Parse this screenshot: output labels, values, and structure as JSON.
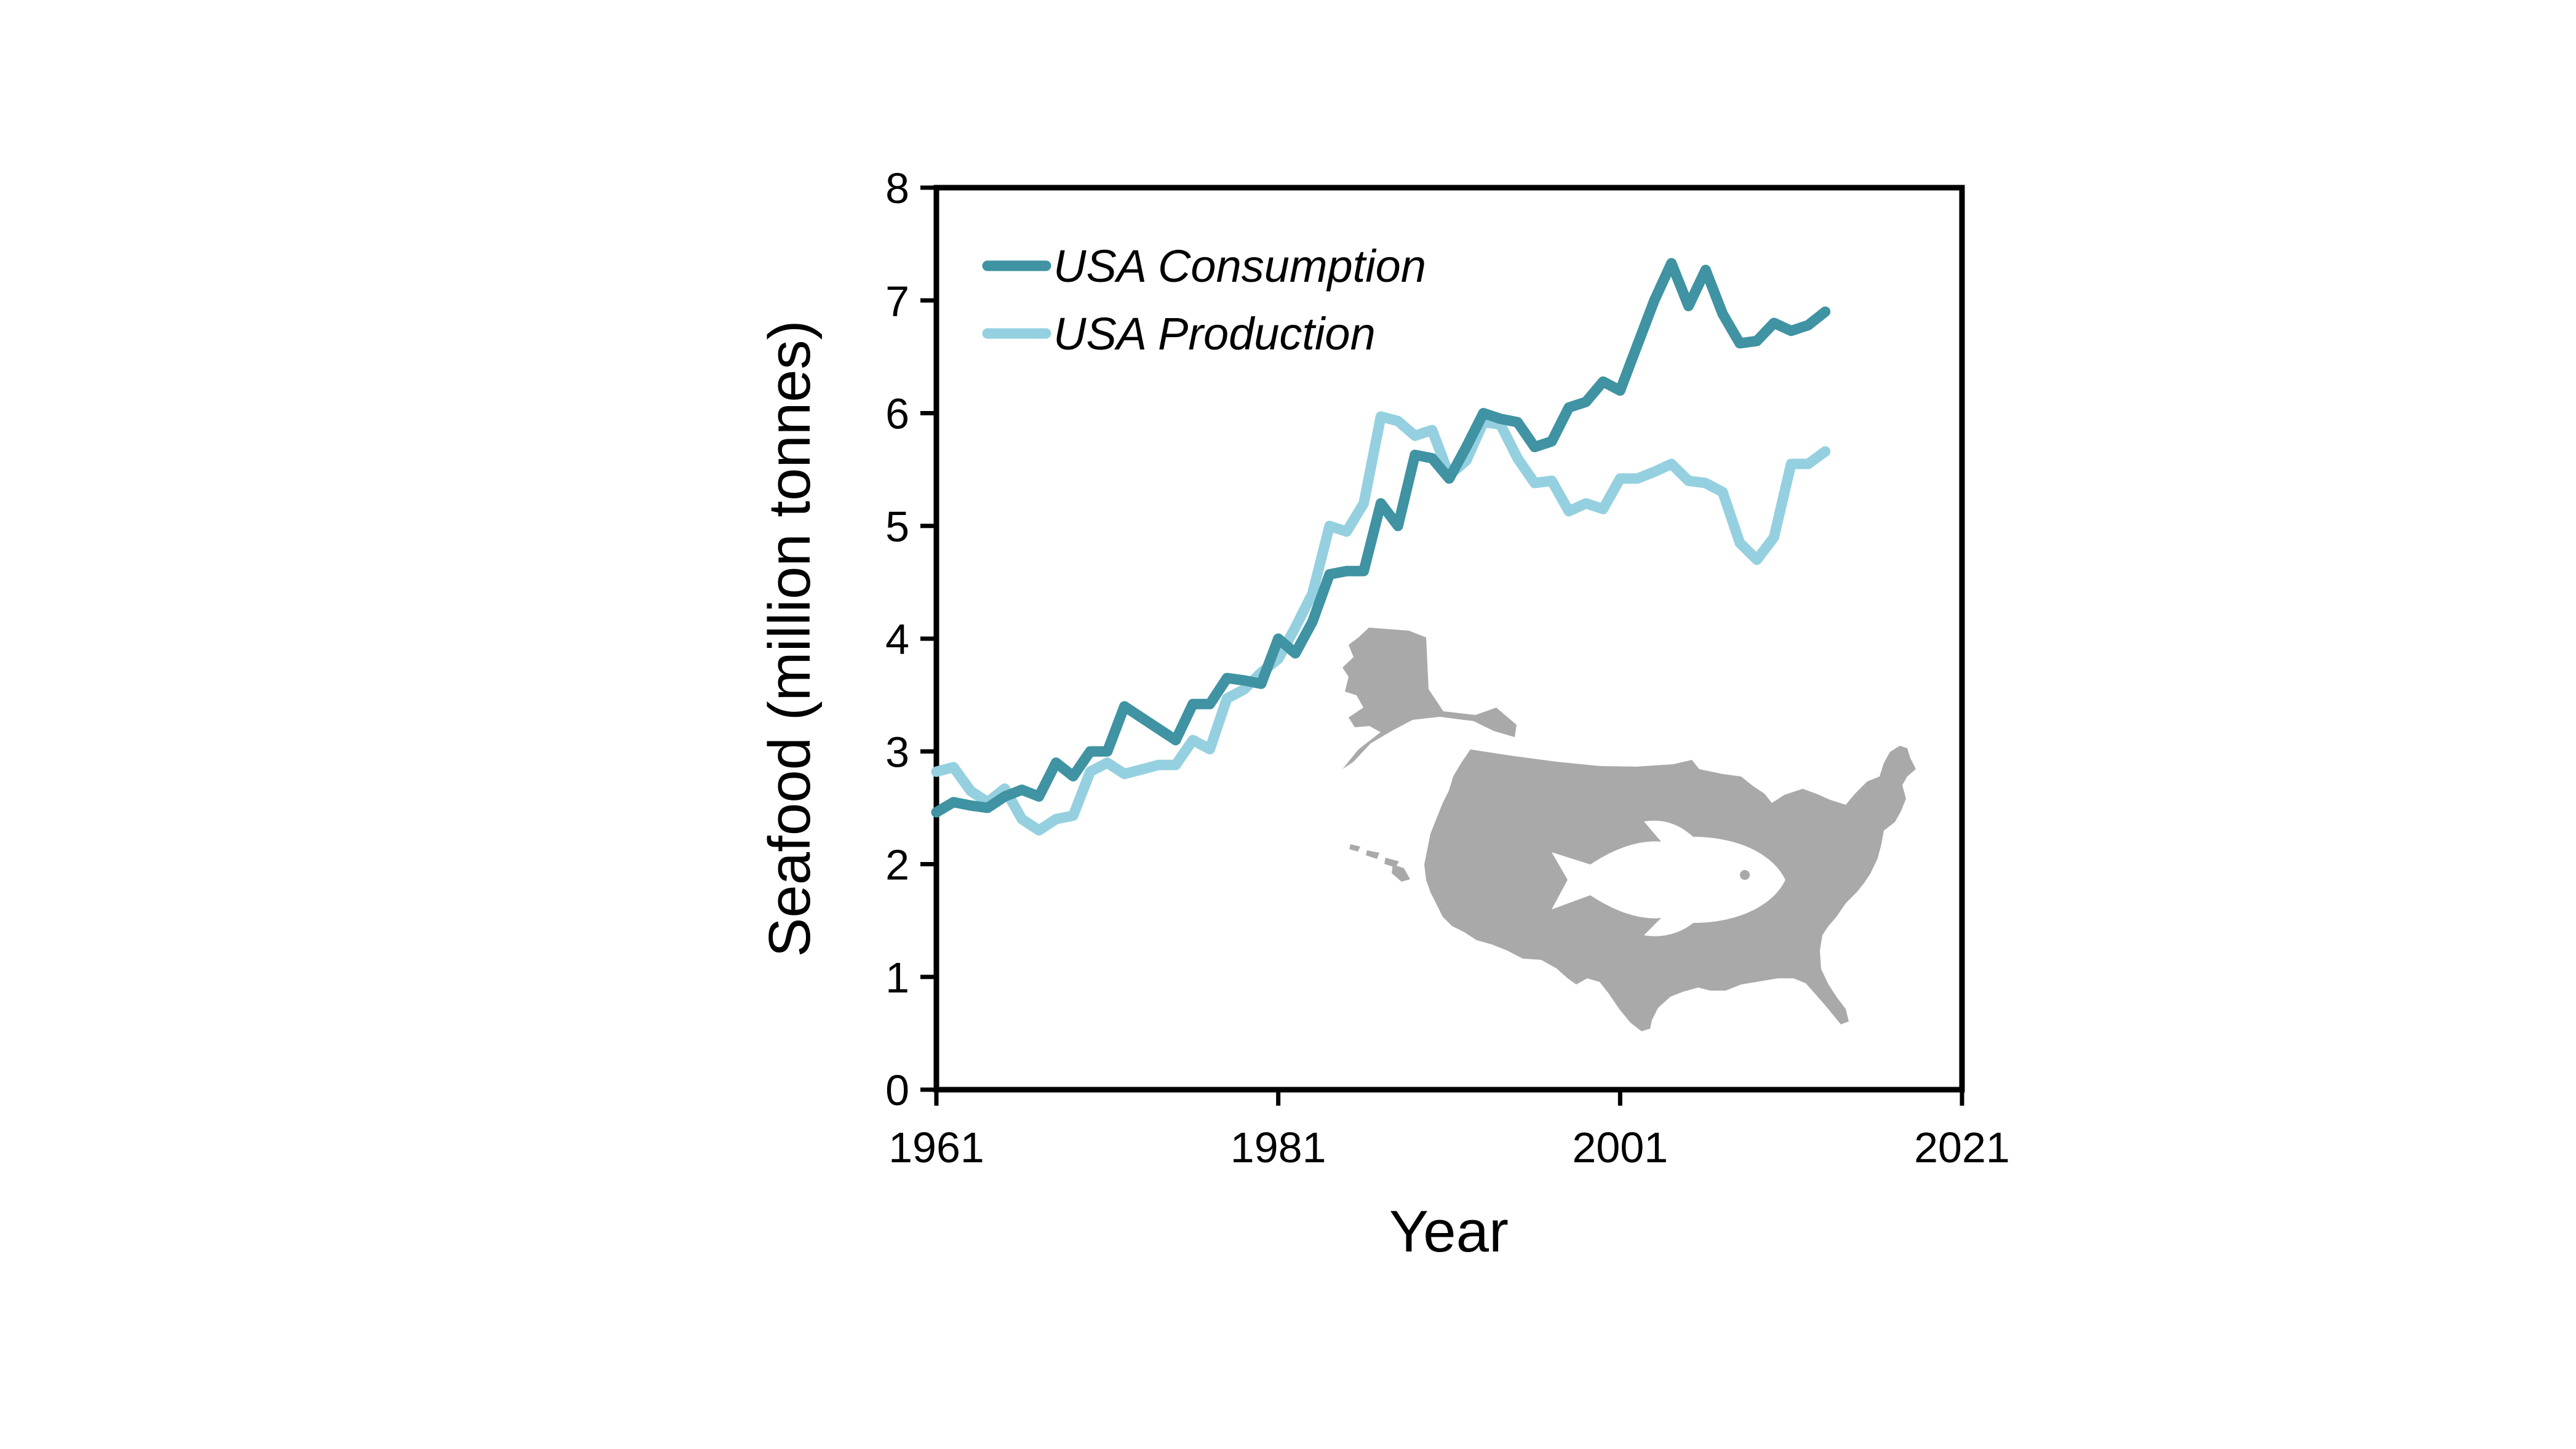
{
  "chart_data": {
    "type": "line",
    "xlabel": "Year",
    "ylabel": "Seafood (million tonnes)",
    "xlim": [
      1961,
      2021
    ],
    "ylim": [
      0,
      8
    ],
    "x_ticks": [
      1961,
      1981,
      2001,
      2021
    ],
    "y_ticks": [
      0,
      1,
      2,
      3,
      4,
      5,
      6,
      7,
      8
    ],
    "legend_position": "top-left",
    "grid": false,
    "inset_icon": "usa-map-with-fish-icon",
    "series": [
      {
        "name": "USA Consumption",
        "color": "#3f93a2",
        "x": [
          1961,
          1962,
          1963,
          1964,
          1965,
          1966,
          1967,
          1968,
          1969,
          1970,
          1971,
          1972,
          1973,
          1974,
          1975,
          1976,
          1977,
          1978,
          1979,
          1980,
          1981,
          1982,
          1983,
          1984,
          1985,
          1986,
          1987,
          1988,
          1989,
          1990,
          1991,
          1992,
          1993,
          1994,
          1995,
          1996,
          1997,
          1998,
          1999,
          2000,
          2001,
          2002,
          2003,
          2004,
          2005,
          2006,
          2007,
          2008,
          2009,
          2010,
          2011,
          2012,
          2013
        ],
        "y": [
          2.46,
          2.55,
          2.52,
          2.5,
          2.6,
          2.66,
          2.6,
          2.9,
          2.78,
          3.0,
          3.0,
          3.4,
          3.3,
          3.2,
          3.1,
          3.42,
          3.42,
          3.65,
          3.63,
          3.6,
          4.0,
          3.87,
          4.15,
          4.57,
          4.6,
          4.6,
          5.2,
          5.0,
          5.63,
          5.6,
          5.42,
          5.7,
          6.0,
          5.95,
          5.92,
          5.7,
          5.75,
          6.05,
          6.1,
          6.28,
          6.2,
          6.6,
          7.0,
          7.33,
          6.95,
          7.27,
          6.88,
          6.62,
          6.64,
          6.8,
          6.73,
          6.78,
          6.9
        ]
      },
      {
        "name": "USA Production",
        "color": "#95d0e0",
        "x": [
          1961,
          1962,
          1963,
          1964,
          1965,
          1966,
          1967,
          1968,
          1969,
          1970,
          1971,
          1972,
          1973,
          1974,
          1975,
          1976,
          1977,
          1978,
          1979,
          1980,
          1981,
          1982,
          1983,
          1984,
          1985,
          1986,
          1987,
          1988,
          1989,
          1990,
          1991,
          1992,
          1993,
          1994,
          1995,
          1996,
          1997,
          1998,
          1999,
          2000,
          2001,
          2002,
          2003,
          2004,
          2005,
          2006,
          2007,
          2008,
          2009,
          2010,
          2011,
          2012,
          2013
        ],
        "y": [
          2.82,
          2.86,
          2.65,
          2.55,
          2.67,
          2.4,
          2.3,
          2.4,
          2.43,
          2.82,
          2.9,
          2.8,
          2.84,
          2.88,
          2.88,
          3.1,
          3.02,
          3.47,
          3.55,
          3.7,
          3.82,
          4.1,
          4.4,
          5.0,
          4.95,
          5.2,
          5.97,
          5.93,
          5.8,
          5.85,
          5.45,
          5.58,
          5.92,
          5.9,
          5.6,
          5.38,
          5.4,
          5.13,
          5.2,
          5.15,
          5.42,
          5.42,
          5.48,
          5.55,
          5.4,
          5.38,
          5.3,
          4.85,
          4.7,
          4.9,
          5.55,
          5.55,
          5.66
        ]
      }
    ]
  }
}
